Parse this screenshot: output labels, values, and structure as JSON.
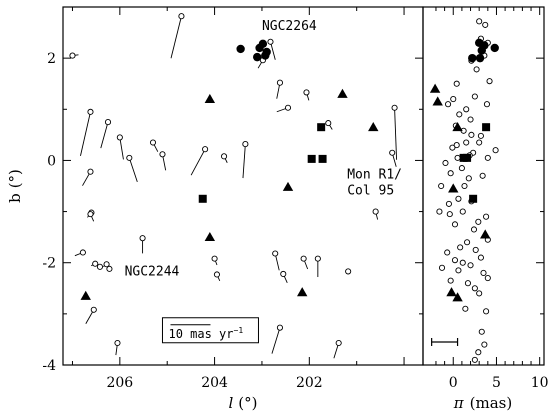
{
  "chart_data": [
    {
      "type": "scatter",
      "title": "",
      "xlabel_symbol": "l",
      "xlabel_unit": "(°)",
      "ylabel_symbol": "b",
      "ylabel_unit": "(°)",
      "xlim": [
        207.2,
        199.6
      ],
      "ylim": [
        -4,
        3
      ],
      "x_reversed": true,
      "xticks": [
        206,
        204,
        202
      ],
      "yticks": [
        -4,
        -2,
        0,
        2
      ],
      "grid": false,
      "annotations": [
        {
          "text": "NGC2264",
          "x": 203.0,
          "y": 2.55
        },
        {
          "text": "Mon R1/",
          "x": 201.2,
          "y": -0.35
        },
        {
          "text": "Col 95",
          "x": 201.2,
          "y": -0.67
        },
        {
          "text": "NGC2244",
          "x": 205.9,
          "y": -2.25
        }
      ],
      "scale_bar": {
        "label_main": "10 mas yr",
        "label_exp": "−1",
        "x": 205.1,
        "y": -3.35,
        "vector_length_mas_per_yr": 10
      },
      "proper_motion_unit": "mas/yr",
      "series": [
        {
          "marker": "open-circle",
          "points": [
            {
              "l": 207.0,
              "b": 2.05,
              "pml": -1.5,
              "pmb": 0.2
            },
            {
              "l": 206.62,
              "b": 0.95,
              "pml": 2.5,
              "pmb": -11.0
            },
            {
              "l": 206.25,
              "b": 0.75,
              "pml": 1.8,
              "pmb": -6.5
            },
            {
              "l": 206.0,
              "b": 0.45,
              "pml": -0.9,
              "pmb": -5.5
            },
            {
              "l": 205.8,
              "b": 0.05,
              "pml": -2.0,
              "pmb": -6.0
            },
            {
              "l": 205.3,
              "b": 0.35,
              "pml": -1.2,
              "pmb": -2.3
            },
            {
              "l": 205.1,
              "b": 0.12,
              "pml": -0.8,
              "pmb": -4.0
            },
            {
              "l": 204.7,
              "b": 2.82,
              "pml": 2.6,
              "pmb": -10.5
            },
            {
              "l": 204.2,
              "b": 0.22,
              "pml": 3.5,
              "pmb": -6.5
            },
            {
              "l": 203.8,
              "b": 0.08,
              "pml": -0.8,
              "pmb": -1.6
            },
            {
              "l": 203.35,
              "b": 0.32,
              "pml": 0.6,
              "pmb": -8.5
            },
            {
              "l": 202.98,
              "b": 1.96,
              "pml": 1.2,
              "pmb": -2.0
            },
            {
              "l": 202.82,
              "b": 2.32,
              "pml": -1.2,
              "pmb": -4.5
            },
            {
              "l": 202.62,
              "b": 1.52,
              "pml": 0.8,
              "pmb": -4.0
            },
            {
              "l": 202.45,
              "b": 1.03,
              "pml": 2.8,
              "pmb": -1.0
            },
            {
              "l": 202.06,
              "b": 1.33,
              "pml": -0.6,
              "pmb": -2.0
            },
            {
              "l": 201.6,
              "b": 0.73,
              "pml": -1.0,
              "pmb": -1.6
            },
            {
              "l": 200.2,
              "b": 1.03,
              "pml": -0.5,
              "pmb": -13.0
            },
            {
              "l": 200.25,
              "b": 0.15,
              "pml": -1.0,
              "pmb": -3.5
            },
            {
              "l": 200.6,
              "b": -1.0,
              "pml": -0.5,
              "pmb": -2.0
            },
            {
              "l": 206.62,
              "b": -0.22,
              "pml": 2.0,
              "pmb": -3.5
            },
            {
              "l": 206.6,
              "b": -1.02,
              "pml": 1.0,
              "pmb": -1.2
            },
            {
              "l": 206.62,
              "b": -1.05,
              "pml": -0.8,
              "pmb": -1.8
            },
            {
              "l": 206.78,
              "b": -1.8,
              "pml": 2.0,
              "pmb": -0.8
            },
            {
              "l": 206.52,
              "b": -2.02,
              "pml": 1.0,
              "pmb": -0.5
            },
            {
              "l": 206.42,
              "b": -2.08,
              "pml": 0.5,
              "pmb": -0.4
            },
            {
              "l": 206.28,
              "b": -2.03,
              "pml": 0.8,
              "pmb": -0.6
            },
            {
              "l": 206.22,
              "b": -2.12,
              "pml": 0.5,
              "pmb": -0.5
            },
            {
              "l": 205.52,
              "b": -1.52,
              "pml": 0.0,
              "pmb": -3.8
            },
            {
              "l": 204.0,
              "b": -1.92,
              "pml": -0.6,
              "pmb": -1.6
            },
            {
              "l": 203.95,
              "b": -2.23,
              "pml": -0.7,
              "pmb": -1.6
            },
            {
              "l": 202.72,
              "b": -1.82,
              "pml": -1.0,
              "pmb": -4.2
            },
            {
              "l": 202.55,
              "b": -2.22,
              "pml": -1.0,
              "pmb": -2.2
            },
            {
              "l": 202.12,
              "b": -1.92,
              "pml": -1.0,
              "pmb": -2.6
            },
            {
              "l": 201.82,
              "b": -1.92,
              "pml": 0.0,
              "pmb": -4.6
            },
            {
              "l": 201.18,
              "b": -2.17,
              "pml": 0.5,
              "pmb": 0.0
            },
            {
              "l": 206.55,
              "b": -2.92,
              "pml": 2.0,
              "pmb": -3.5
            },
            {
              "l": 206.05,
              "b": -3.57,
              "pml": 0.4,
              "pmb": -3.0
            },
            {
              "l": 202.62,
              "b": -3.27,
              "pml": 2.0,
              "pmb": -6.5
            },
            {
              "l": 201.38,
              "b": -3.57,
              "pml": 1.2,
              "pmb": -3.8
            }
          ]
        },
        {
          "marker": "filled-circle",
          "points": [
            {
              "l": 203.45,
              "b": 2.18,
              "pml": 0.0,
              "pmb": 0.0
            },
            {
              "l": 203.1,
              "b": 2.02,
              "pml": 0.0,
              "pmb": 0.0
            },
            {
              "l": 202.98,
              "b": 2.28,
              "pml": 0.0,
              "pmb": 0.0
            },
            {
              "l": 202.9,
              "b": 2.12,
              "pml": 0.0,
              "pmb": 0.0
            },
            {
              "l": 202.93,
              "b": 2.05,
              "pml": 0.0,
              "pmb": 0.0
            },
            {
              "l": 203.05,
              "b": 2.2,
              "pml": 0.0,
              "pmb": 0.0
            }
          ]
        },
        {
          "marker": "filled-triangle",
          "points": [
            {
              "l": 201.3,
              "b": 1.3,
              "pml": 0.0,
              "pmb": 0.0
            },
            {
              "l": 204.1,
              "b": 1.2,
              "pml": 0.0,
              "pmb": 0.0
            },
            {
              "l": 200.65,
              "b": 0.65,
              "pml": 0.0,
              "pmb": 0.0
            },
            {
              "l": 202.45,
              "b": -0.52,
              "pml": 0.0,
              "pmb": 0.0
            },
            {
              "l": 204.1,
              "b": -1.5,
              "pml": 0.0,
              "pmb": 0.0
            },
            {
              "l": 202.15,
              "b": -2.58,
              "pml": 0.0,
              "pmb": 0.0
            },
            {
              "l": 206.72,
              "b": -2.65,
              "pml": 0.0,
              "pmb": 0.0
            }
          ]
        },
        {
          "marker": "filled-square",
          "points": [
            {
              "l": 201.75,
              "b": 0.65,
              "pml": 0.0,
              "pmb": 0.0
            },
            {
              "l": 201.95,
              "b": 0.03,
              "pml": 0.0,
              "pmb": 0.0
            },
            {
              "l": 201.72,
              "b": 0.03,
              "pml": 0.0,
              "pmb": 0.0
            },
            {
              "l": 204.25,
              "b": -0.75,
              "pml": 0.0,
              "pmb": 0.0
            }
          ]
        }
      ]
    },
    {
      "type": "scatter",
      "title": "",
      "xlabel_symbol": "π",
      "xlabel_unit": "(mas)",
      "ylabel": "",
      "xlim": [
        -3.5,
        10.5
      ],
      "ylim": [
        -4,
        3
      ],
      "xticks": [
        0,
        5,
        10
      ],
      "yticks": [
        -4,
        -2,
        0,
        2
      ],
      "shares_y_with_left_panel": true,
      "typical_error_bar": {
        "x": -1.0,
        "y": -3.55,
        "half_width_mas": 1.0
      },
      "series": [
        {
          "marker": "open-circle",
          "points": [
            {
              "pi": 3.0,
              "b": 2.72
            },
            {
              "pi": 3.7,
              "b": 2.65
            },
            {
              "pi": 3.2,
              "b": 2.38
            },
            {
              "pi": 4.0,
              "b": 2.3
            },
            {
              "pi": 3.6,
              "b": 2.05
            },
            {
              "pi": 2.1,
              "b": 1.95
            },
            {
              "pi": 2.7,
              "b": 1.78
            },
            {
              "pi": 4.2,
              "b": 1.55
            },
            {
              "pi": 0.4,
              "b": 1.5
            },
            {
              "pi": 2.5,
              "b": 1.25
            },
            {
              "pi": 0.0,
              "b": 1.2
            },
            {
              "pi": -0.6,
              "b": 1.1
            },
            {
              "pi": 3.9,
              "b": 1.1
            },
            {
              "pi": 1.5,
              "b": 1.0
            },
            {
              "pi": 0.7,
              "b": 0.9
            },
            {
              "pi": 2.0,
              "b": 0.8
            },
            {
              "pi": 0.3,
              "b": 0.68
            },
            {
              "pi": 1.2,
              "b": 0.58
            },
            {
              "pi": 2.1,
              "b": 0.5
            },
            {
              "pi": 3.2,
              "b": 0.48
            },
            {
              "pi": 3.0,
              "b": 0.35
            },
            {
              "pi": 1.5,
              "b": 0.35
            },
            {
              "pi": 0.4,
              "b": 0.3
            },
            {
              "pi": -0.1,
              "b": 0.25
            },
            {
              "pi": 2.3,
              "b": 0.15
            },
            {
              "pi": 1.9,
              "b": 0.1
            },
            {
              "pi": 4.0,
              "b": 0.05
            },
            {
              "pi": 4.9,
              "b": 0.2
            },
            {
              "pi": 0.5,
              "b": 0.05
            },
            {
              "pi": -0.9,
              "b": -0.05
            },
            {
              "pi": 1.0,
              "b": -0.15
            },
            {
              "pi": -0.3,
              "b": -0.25
            },
            {
              "pi": 3.4,
              "b": -0.3
            },
            {
              "pi": 1.8,
              "b": -0.35
            },
            {
              "pi": -1.4,
              "b": -0.5
            },
            {
              "pi": 1.3,
              "b": -0.5
            },
            {
              "pi": 0.6,
              "b": -0.75
            },
            {
              "pi": 2.1,
              "b": -0.8
            },
            {
              "pi": -0.5,
              "b": -0.85
            },
            {
              "pi": -1.6,
              "b": -1.0
            },
            {
              "pi": 1.1,
              "b": -1.0
            },
            {
              "pi": -0.4,
              "b": -1.05
            },
            {
              "pi": 3.8,
              "b": -1.1
            },
            {
              "pi": 2.9,
              "b": -1.2
            },
            {
              "pi": 0.2,
              "b": -1.25
            },
            {
              "pi": 2.4,
              "b": -1.35
            },
            {
              "pi": 4.0,
              "b": -1.55
            },
            {
              "pi": 1.6,
              "b": -1.6
            },
            {
              "pi": 0.8,
              "b": -1.7
            },
            {
              "pi": 2.6,
              "b": -1.75
            },
            {
              "pi": -0.7,
              "b": -1.8
            },
            {
              "pi": 3.2,
              "b": -1.9
            },
            {
              "pi": 0.2,
              "b": -1.95
            },
            {
              "pi": 1.1,
              "b": -2.0
            },
            {
              "pi": 2.0,
              "b": -2.05
            },
            {
              "pi": -1.3,
              "b": -2.1
            },
            {
              "pi": 0.6,
              "b": -2.15
            },
            {
              "pi": 3.5,
              "b": -2.2
            },
            {
              "pi": 4.0,
              "b": -2.3
            },
            {
              "pi": -0.3,
              "b": -2.35
            },
            {
              "pi": 1.7,
              "b": -2.4
            },
            {
              "pi": 2.5,
              "b": -2.5
            },
            {
              "pi": 3.0,
              "b": -2.6
            },
            {
              "pi": 1.4,
              "b": -2.9
            },
            {
              "pi": 3.8,
              "b": -2.95
            },
            {
              "pi": 3.3,
              "b": -3.35
            },
            {
              "pi": 3.6,
              "b": -3.6
            },
            {
              "pi": 2.9,
              "b": -3.75
            },
            {
              "pi": 2.5,
              "b": -3.9
            }
          ]
        },
        {
          "marker": "filled-circle",
          "points": [
            {
              "pi": 2.2,
              "b": 2.0
            },
            {
              "pi": 3.0,
              "b": 2.3
            },
            {
              "pi": 3.3,
              "b": 2.15
            },
            {
              "pi": 3.6,
              "b": 2.25
            },
            {
              "pi": 4.8,
              "b": 2.2
            },
            {
              "pi": 3.1,
              "b": 2.0
            }
          ]
        },
        {
          "marker": "filled-triangle",
          "points": [
            {
              "pi": -2.1,
              "b": 1.4
            },
            {
              "pi": -1.8,
              "b": 1.15
            },
            {
              "pi": 0.5,
              "b": 0.65
            },
            {
              "pi": 0.0,
              "b": -0.55
            },
            {
              "pi": 3.7,
              "b": -1.45
            },
            {
              "pi": -0.2,
              "b": -2.58
            },
            {
              "pi": 0.5,
              "b": -2.68
            }
          ]
        },
        {
          "marker": "filled-square",
          "points": [
            {
              "pi": 3.8,
              "b": 0.65
            },
            {
              "pi": 1.2,
              "b": 0.05
            },
            {
              "pi": 1.6,
              "b": 0.05
            },
            {
              "pi": 2.3,
              "b": -0.75
            }
          ]
        }
      ]
    }
  ]
}
